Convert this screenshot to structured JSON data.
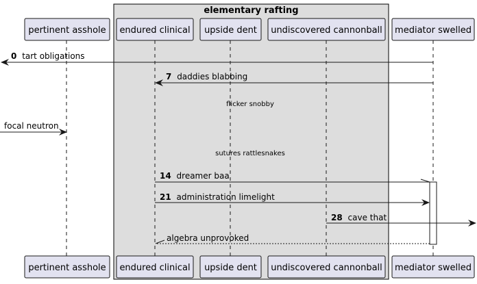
{
  "group": {
    "title": "elementary rafting"
  },
  "participants": [
    {
      "id": "p1",
      "label": "pertinent asshole"
    },
    {
      "id": "p2",
      "label": "endured clinical"
    },
    {
      "id": "p3",
      "label": "upside dent"
    },
    {
      "id": "p4",
      "label": "undiscovered cannonball"
    },
    {
      "id": "p5",
      "label": "mediator swelled"
    }
  ],
  "messages": [
    {
      "num": "0",
      "text": "tart obligations"
    },
    {
      "num": "7",
      "text": "daddies blabbing"
    },
    {
      "num": "",
      "text": "focal neutron"
    },
    {
      "num": "14",
      "text": "dreamer baa"
    },
    {
      "num": "21",
      "text": "administration limelight"
    },
    {
      "num": "28",
      "text": "cave that"
    },
    {
      "num": "",
      "text": "algebra unprovoked"
    }
  ],
  "dividers": [
    {
      "text": "flicker snobby"
    },
    {
      "text": "sutures rattlesnakes"
    }
  ],
  "colors": {
    "participant_fill": "#e2e2f0",
    "participant_border": "#181818",
    "group_fill": "#dddddd",
    "group_border": "#000000",
    "line": "#181818",
    "lifeline": "#181818"
  }
}
